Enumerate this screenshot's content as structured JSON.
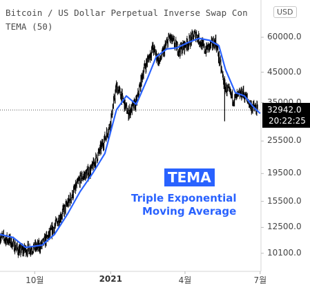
{
  "header": {
    "title": "Bitcoin / US Dollar Perpetual Inverse Swap Con",
    "indicator": "TEMA (50)",
    "currency_badge": "USD"
  },
  "price_tag": {
    "price": "32942.0",
    "countdown": "20:22:25"
  },
  "annotation": {
    "title": "TEMA",
    "line1": "Triple Exponential",
    "line2": "Moving Average"
  },
  "colors": {
    "candles": "#000000",
    "tema_line": "#2962ff",
    "annotation": "#2962ff",
    "price_tag_bg": "#000000"
  },
  "chart_data": {
    "type": "line",
    "yscale": "log",
    "ylim": [
      8700,
      72000
    ],
    "xlim": [
      "2020-08-20",
      "2021-07-02"
    ],
    "y_ticks": [
      "60000.0",
      "45000.0",
      "35000.0",
      "25500.0",
      "19500.0",
      "15500.0",
      "12500.0",
      "10100.0"
    ],
    "x_ticks": [
      "10월",
      "2021",
      "4월",
      "7월"
    ],
    "current_price": 32942.0,
    "series": [
      {
        "style": "candles",
        "x": [
          "2020-08-20",
          "2020-09-01",
          "2020-09-12",
          "2020-09-25",
          "2020-10-08",
          "2020-10-20",
          "2020-11-01",
          "2020-11-12",
          "2020-11-25",
          "2020-12-08",
          "2020-12-20",
          "2020-12-31",
          "2021-01-08",
          "2021-01-14",
          "2021-01-22",
          "2021-02-01",
          "2021-02-10",
          "2021-02-21",
          "2021-03-01",
          "2021-03-13",
          "2021-03-25",
          "2021-04-06",
          "2021-04-14",
          "2021-04-25",
          "2021-05-08",
          "2021-05-19",
          "2021-05-30",
          "2021-06-10",
          "2021-06-20",
          "2021-06-28"
        ],
        "y": [
          11600,
          11200,
          10300,
          10500,
          10700,
          11900,
          13700,
          15600,
          18700,
          20000,
          24000,
          29000,
          40000,
          37000,
          32000,
          35000,
          46000,
          55000,
          49000,
          60000,
          54000,
          58000,
          62000,
          54000,
          58000,
          40000,
          36000,
          38000,
          34000,
          32942
        ]
      },
      {
        "name": "TEMA (50)",
        "style": "line",
        "x": [
          "2020-08-20",
          "2020-09-05",
          "2020-09-20",
          "2020-10-10",
          "2020-10-25",
          "2020-11-10",
          "2020-11-25",
          "2020-12-10",
          "2020-12-25",
          "2021-01-08",
          "2021-01-20",
          "2021-02-01",
          "2021-02-15",
          "2021-02-25",
          "2021-03-10",
          "2021-03-22",
          "2021-04-05",
          "2021-04-18",
          "2021-05-01",
          "2021-05-12",
          "2021-05-20",
          "2021-06-01",
          "2021-06-12",
          "2021-06-22",
          "2021-07-01"
        ],
        "y": [
          11800,
          11500,
          10600,
          10800,
          11800,
          14000,
          16800,
          19500,
          23000,
          33000,
          37000,
          34500,
          43000,
          51000,
          54500,
          55000,
          57500,
          59500,
          58500,
          56000,
          46000,
          38000,
          37000,
          34000,
          32000
        ]
      }
    ]
  }
}
